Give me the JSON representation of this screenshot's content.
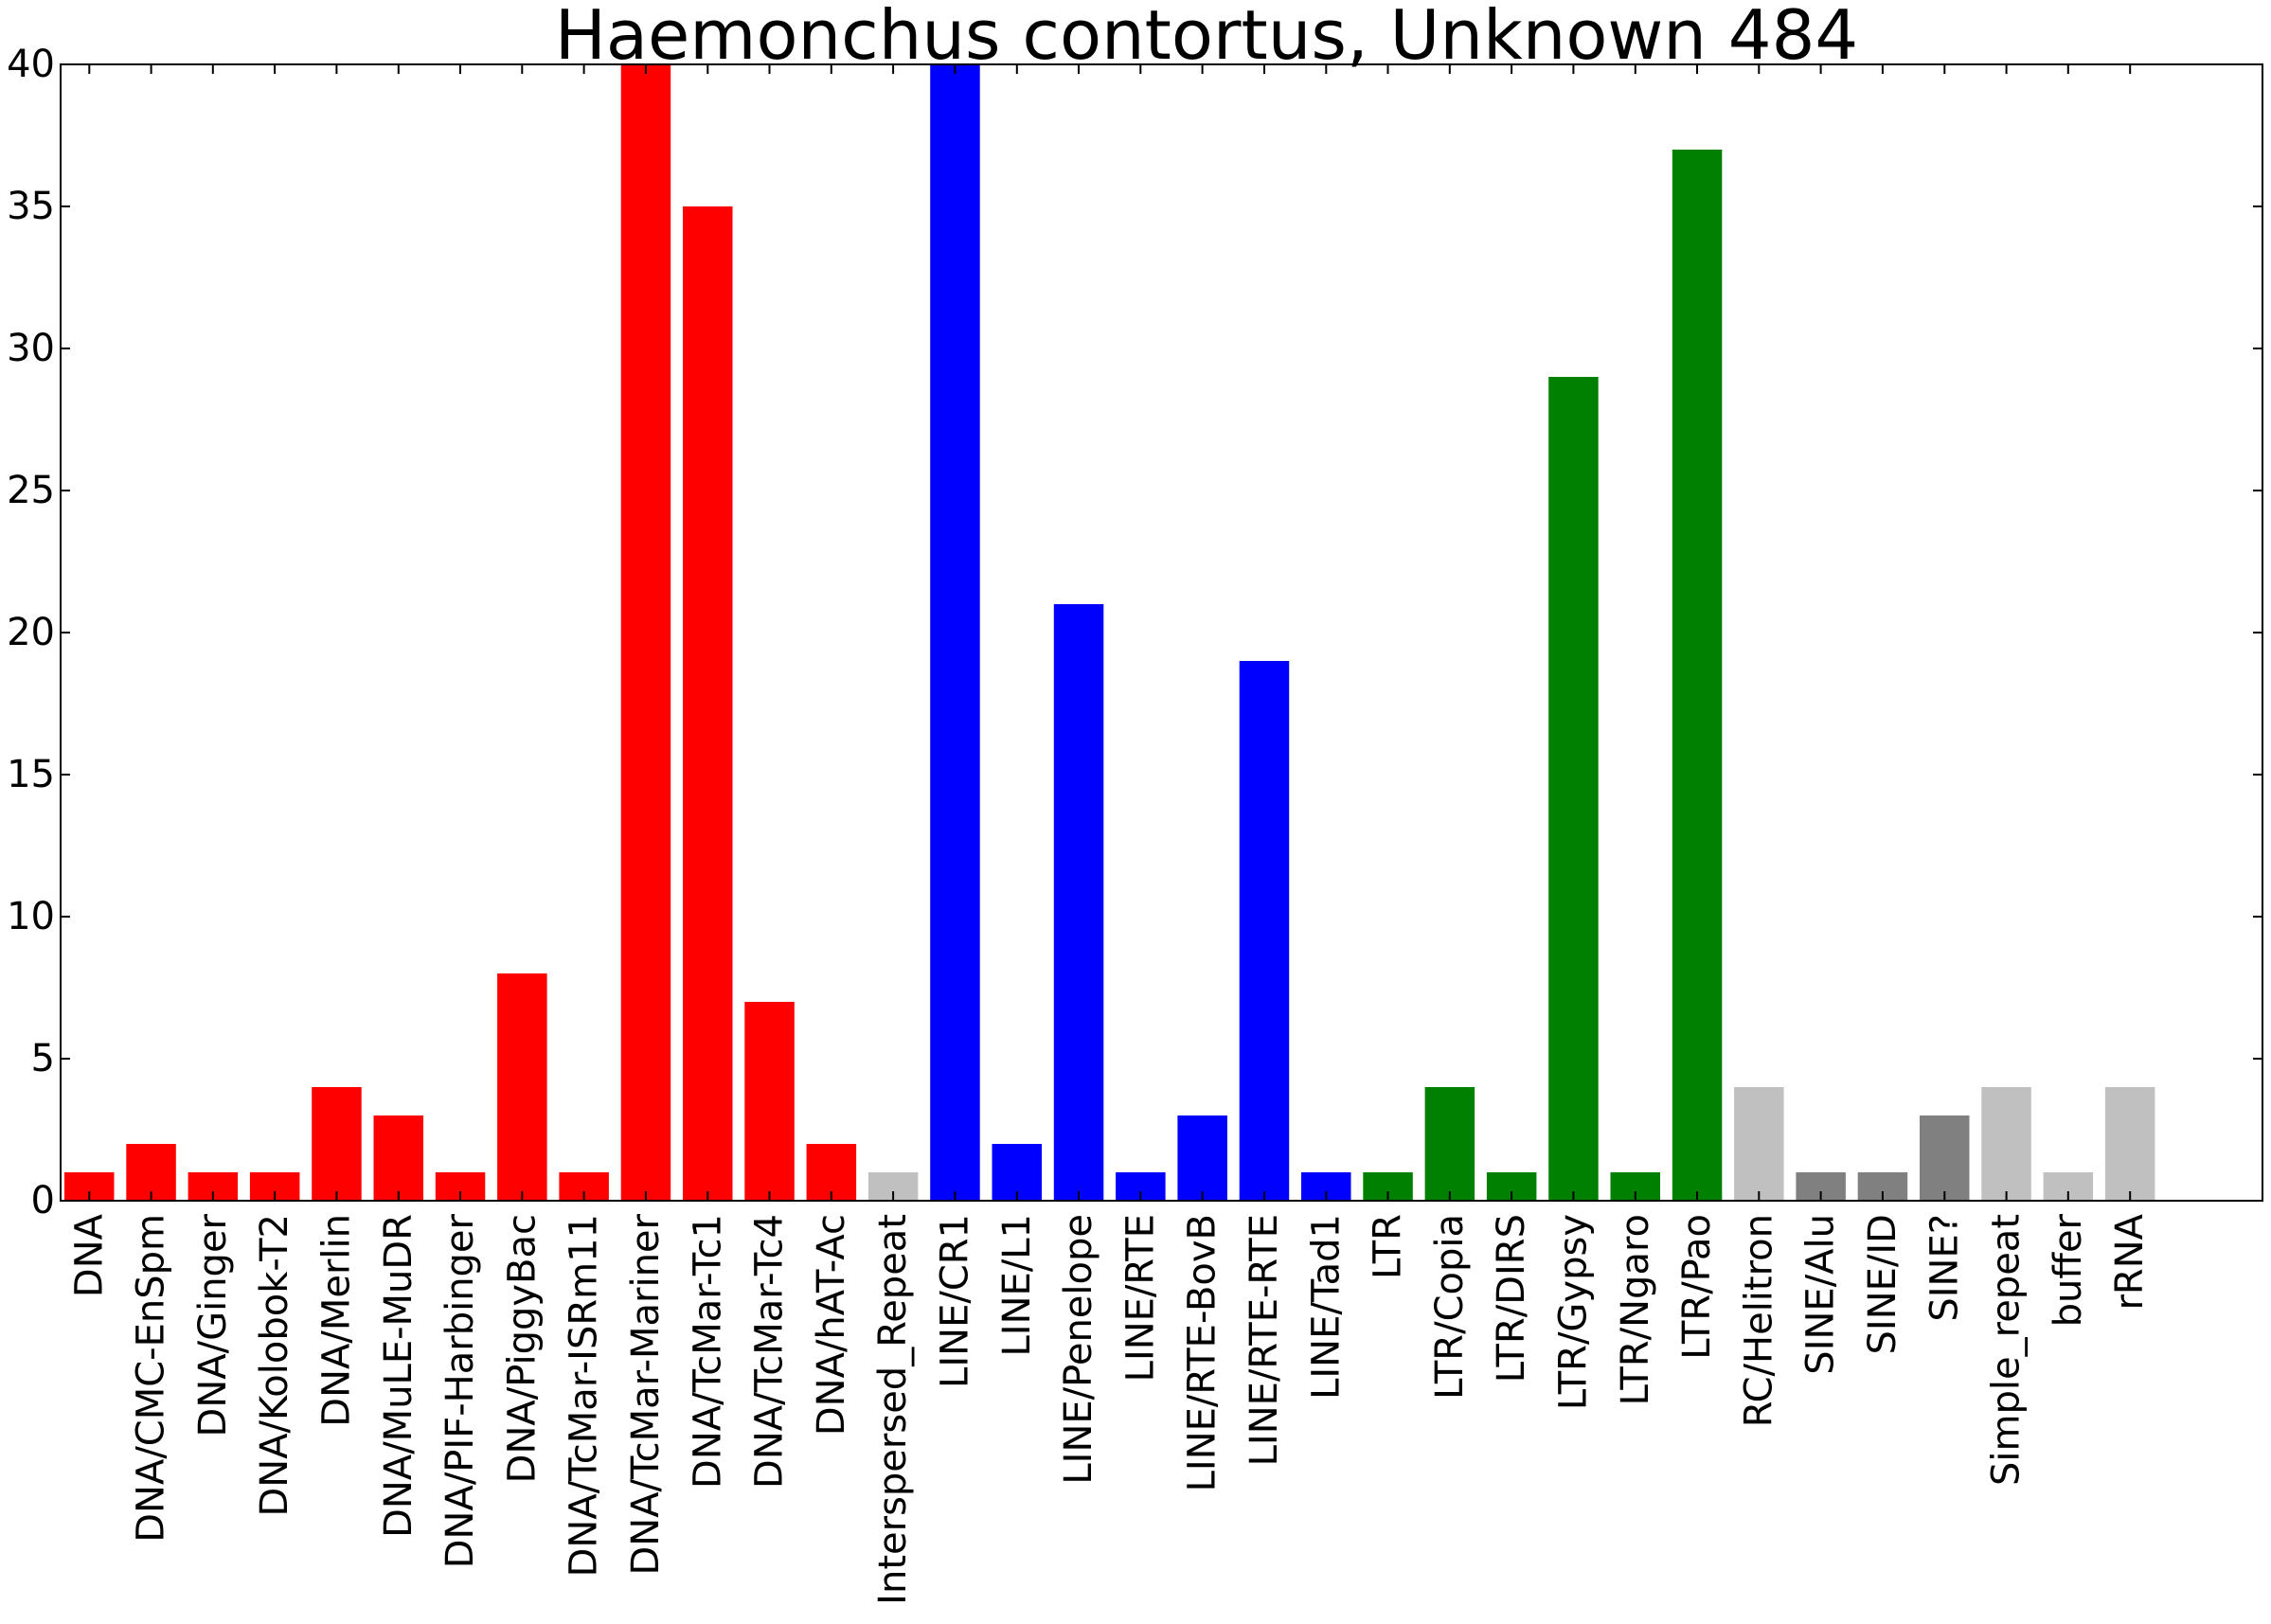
{
  "chart_data": {
    "type": "bar",
    "title": "Haemonchus contortus, Unknown 484",
    "xlabel": "",
    "ylabel": "",
    "ylim": [
      0,
      40
    ],
    "yticks": [
      0,
      5,
      10,
      15,
      20,
      25,
      30,
      35,
      40
    ],
    "grid": false,
    "legend": "none",
    "categories": [
      "DNA",
      "DNA/CMC-EnSpm",
      "DNA/Ginger",
      "DNA/Kolobok-T2",
      "DNA/Merlin",
      "DNA/MuLE-MuDR",
      "DNA/PIF-Harbinger",
      "DNA/PiggyBac",
      "DNA/TcMar-ISRm11",
      "DNA/TcMar-Mariner",
      "DNA/TcMar-Tc1",
      "DNA/TcMar-Tc4",
      "DNA/hAT-Ac",
      "Interspersed_Repeat",
      "LINE/CR1",
      "LINE/L1",
      "LINE/Penelope",
      "LINE/RTE",
      "LINE/RTE-BovB",
      "LINE/RTE-RTE",
      "LINE/Tad1",
      "LTR",
      "LTR/Copia",
      "LTR/DIRS",
      "LTR/Gypsy",
      "LTR/Ngaro",
      "LTR/Pao",
      "RC/Helitron",
      "SINE/Alu",
      "SINE/ID",
      "SINE?",
      "Simple_repeat",
      "buffer",
      "rRNA"
    ],
    "values": [
      1,
      2,
      1,
      1,
      4,
      3,
      1,
      8,
      1,
      40,
      35,
      7,
      2,
      1,
      40,
      2,
      21,
      1,
      3,
      19,
      1,
      1,
      4,
      1,
      29,
      1,
      37,
      4,
      1,
      1,
      3,
      4,
      1,
      4
    ],
    "colors": [
      "#ff0000",
      "#ff0000",
      "#ff0000",
      "#ff0000",
      "#ff0000",
      "#ff0000",
      "#ff0000",
      "#ff0000",
      "#ff0000",
      "#ff0000",
      "#ff0000",
      "#ff0000",
      "#ff0000",
      "#c0c0c0",
      "#0000ff",
      "#0000ff",
      "#0000ff",
      "#0000ff",
      "#0000ff",
      "#0000ff",
      "#0000ff",
      "#008000",
      "#008000",
      "#008000",
      "#008000",
      "#008000",
      "#008000",
      "#c0c0c0",
      "#808080",
      "#808080",
      "#808080",
      "#c0c0c0",
      "#c0c0c0",
      "#c0c0c0"
    ]
  }
}
